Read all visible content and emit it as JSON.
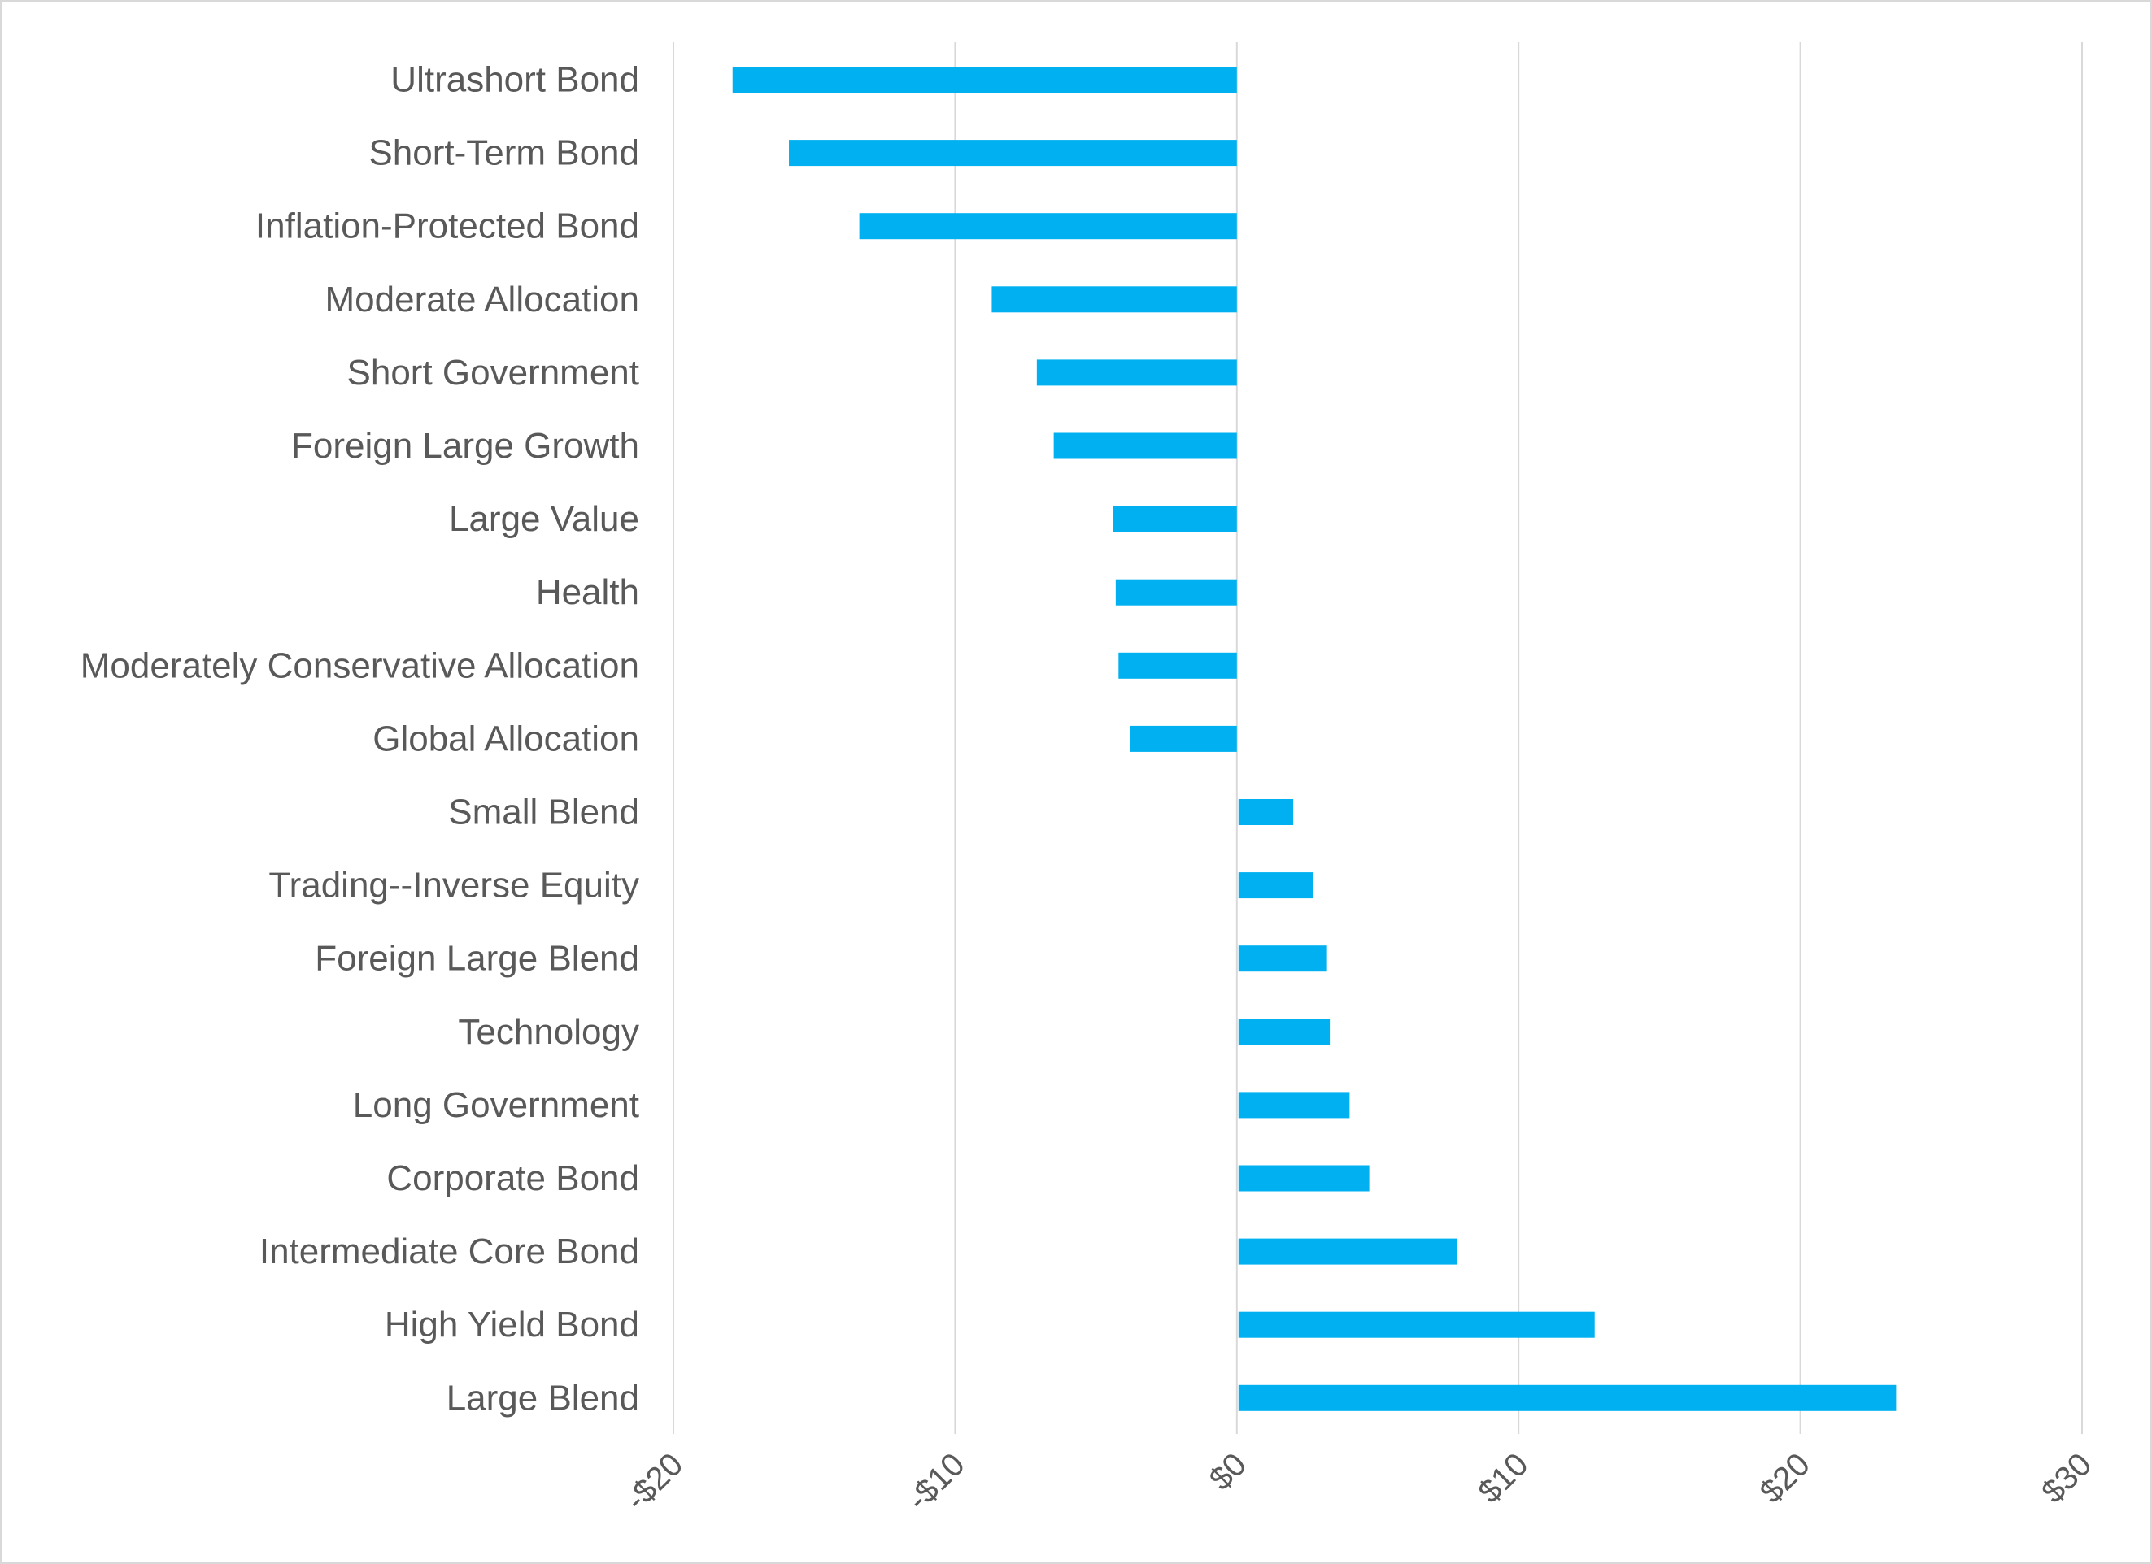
{
  "chart_data": {
    "type": "bar",
    "orientation": "horizontal",
    "title": "",
    "xlabel": "",
    "ylabel": "",
    "categories": [
      "Ultrashort Bond",
      "Short-Term Bond",
      "Inflation-Protected Bond",
      "Moderate Allocation",
      "Short Government",
      "Foreign Large Growth",
      "Large Value",
      "Health",
      "Moderately Conservative Allocation",
      "Global Allocation",
      "Small Blend",
      "Trading--Inverse Equity",
      "Foreign Large Blend",
      "Technology",
      "Long Government",
      "Corporate Bond",
      "Intermediate Core Bond",
      "High Yield Bond",
      "Large Blend"
    ],
    "values": [
      -17.9,
      -15.9,
      -13.4,
      -8.7,
      -7.1,
      -6.5,
      -4.4,
      -4.3,
      -4.2,
      -3.8,
      2.0,
      2.7,
      3.2,
      3.3,
      4.0,
      4.7,
      7.8,
      12.7,
      23.4
    ],
    "xlim": [
      -20,
      30
    ],
    "ticks": [
      -20,
      -10,
      0,
      10,
      20,
      30
    ],
    "tick_labels": [
      "-$20",
      "-$10",
      "$0",
      "$10",
      "$20",
      "$30"
    ],
    "grid": "vertical",
    "legend": "none",
    "bar_color": "#00b0f0",
    "grid_color": "#d9d9d9",
    "text_color": "#595959"
  }
}
